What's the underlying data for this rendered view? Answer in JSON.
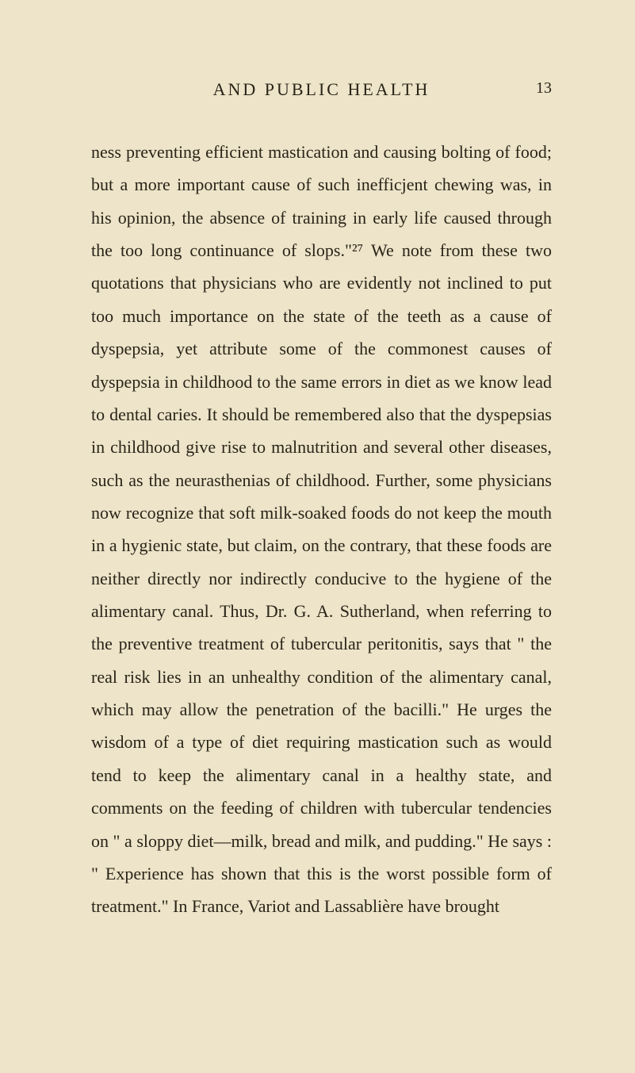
{
  "page": {
    "running_head": "AND PUBLIC HEALTH",
    "page_number": "13",
    "body_text": "ness preventing efficient mastication and causing bolting of food; but a more important cause of such inefficjent chewing was, in his opinion, the absence of training in early life caused through the too long continuance of slops.\"²⁷ We note from these two quotations that physicians who are evidently not inclined to put too much importance on the state of the teeth as a cause of dyspepsia, yet attribute some of the commonest causes of dyspepsia in childhood to the same errors in diet as we know lead to dental caries. It should be remembered also that the dyspepsias in childhood give rise to malnutrition and several other diseases, such as the neurasthenias of childhood. Further, some physicians now recognize that soft milk-soaked foods do not keep the mouth in a hygienic state, but claim, on the contrary, that these foods are neither directly nor indirectly con­ducive to the hygiene of the alimentary canal. Thus, Dr. G. A. Sutherland, when referring to the preven­tive treatment of tubercular peritonitis, says that \" the real risk lies in an unhealthy condition of the alimentary canal, which may allow the penetration of the bacilli.\" He urges the wisdom of a type of diet requiring mastication such as would tend to keep the alimentary canal in a healthy state, and comments on the feeding of children with tubercular tendencies on \" a sloppy diet—milk, bread and milk, and pudding.\" He says : \" Experience has shown that this is the worst possible form of treatment.\" In France, Variot and Lassablière have brought",
    "background_color": "#ede4c9",
    "text_color": "#2a2418",
    "body_fontsize": 22,
    "head_fontsize": 22,
    "line_height": 1.88
  }
}
